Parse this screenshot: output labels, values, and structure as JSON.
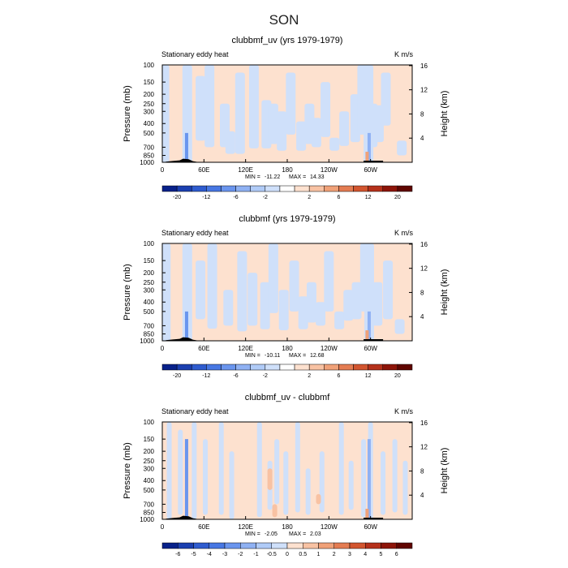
{
  "figure": {
    "title": "SON",
    "ylabel_left": "Pressure (mb)",
    "ylabel_right": "Height (km)"
  },
  "chart_data": [
    {
      "type": "heatmap",
      "title": "clubbmf_uv (yrs 1979-1979)",
      "left_label": "Stationary eddy heat",
      "right_label": "K m/s",
      "x_ticks": [
        "0",
        "60E",
        "120E",
        "180",
        "120W",
        "60W"
      ],
      "x_range": [
        0,
        360
      ],
      "y_ticks": [
        "100",
        "150",
        "200",
        "250",
        "300",
        "400",
        "500",
        "700",
        "850",
        "1000"
      ],
      "y_right_ticks": [
        "16",
        "12",
        "8",
        "4"
      ],
      "ylim": [
        1000,
        100
      ],
      "min": "-11.22",
      "max": "14.33",
      "min_label": "MIN =",
      "max_label": "MAX =",
      "colorbar_labels": [
        "-20",
        "-12",
        "-6",
        "-2",
        "2",
        "6",
        "12",
        "20"
      ],
      "colorbar_levels": [
        -20,
        -16,
        -12,
        -8,
        -6,
        -4,
        -2,
        -1,
        1,
        2,
        4,
        6,
        8,
        12,
        16,
        20
      ],
      "neg_bands": [
        [
          36,
          100,
          1000
        ],
        [
          3,
          100,
          1000
        ],
        [
          55,
          130,
          600
        ],
        [
          68,
          100,
          700
        ],
        [
          90,
          250,
          700
        ],
        [
          98,
          480,
          820
        ],
        [
          112,
          120,
          820
        ],
        [
          132,
          100,
          720
        ],
        [
          150,
          230,
          720
        ],
        [
          160,
          250,
          650
        ],
        [
          172,
          300,
          760
        ],
        [
          185,
          120,
          520
        ],
        [
          200,
          380,
          760
        ],
        [
          212,
          250,
          650
        ],
        [
          222,
          350,
          700
        ],
        [
          235,
          150,
          550
        ],
        [
          248,
          560,
          760
        ],
        [
          262,
          300,
          680
        ],
        [
          278,
          200,
          620
        ],
        [
          288,
          100,
          520
        ],
        [
          297,
          100,
          1000
        ],
        [
          303,
          250,
          700
        ],
        [
          312,
          260,
          620
        ],
        [
          322,
          120,
          420
        ],
        [
          345,
          600,
          850
        ]
      ]
    },
    {
      "type": "heatmap",
      "title": "clubbmf (yrs 1979-1979)",
      "left_label": "Stationary eddy heat",
      "right_label": "K m/s",
      "x_ticks": [
        "0",
        "60E",
        "120E",
        "180",
        "120W",
        "60W"
      ],
      "x_range": [
        0,
        360
      ],
      "y_ticks": [
        "100",
        "150",
        "200",
        "250",
        "300",
        "400",
        "500",
        "700",
        "850",
        "1000"
      ],
      "y_right_ticks": [
        "16",
        "12",
        "8",
        "4"
      ],
      "ylim": [
        1000,
        100
      ],
      "min": "-10.11",
      "max": "12.68",
      "min_label": "MIN =",
      "max_label": "MAX =",
      "colorbar_labels": [
        "-20",
        "-12",
        "-6",
        "-2",
        "2",
        "6",
        "12",
        "20"
      ],
      "colorbar_levels": [
        -20,
        -16,
        -12,
        -8,
        -6,
        -4,
        -2,
        -1,
        1,
        2,
        4,
        6,
        8,
        12,
        16,
        20
      ],
      "neg_bands": [
        [
          36,
          100,
          1000
        ],
        [
          5,
          100,
          1000
        ],
        [
          55,
          150,
          600
        ],
        [
          72,
          100,
          750
        ],
        [
          95,
          300,
          700
        ],
        [
          115,
          120,
          800
        ],
        [
          130,
          200,
          700
        ],
        [
          148,
          250,
          760
        ],
        [
          160,
          100,
          520
        ],
        [
          175,
          300,
          780
        ],
        [
          190,
          150,
          500
        ],
        [
          203,
          350,
          760
        ],
        [
          215,
          250,
          650
        ],
        [
          228,
          400,
          700
        ],
        [
          240,
          120,
          500
        ],
        [
          255,
          500,
          760
        ],
        [
          268,
          300,
          620
        ],
        [
          280,
          250,
          600
        ],
        [
          292,
          100,
          500
        ],
        [
          298,
          100,
          1000
        ],
        [
          310,
          250,
          700
        ],
        [
          325,
          150,
          600
        ],
        [
          342,
          600,
          850
        ]
      ]
    },
    {
      "type": "heatmap",
      "title": "clubbmf_uv - clubbmf",
      "left_label": "Stationary eddy heat",
      "right_label": "K m/s",
      "x_ticks": [
        "0",
        "60E",
        "120E",
        "180",
        "120W",
        "60W"
      ],
      "x_range": [
        0,
        360
      ],
      "y_ticks": [
        "100",
        "150",
        "200",
        "250",
        "300",
        "400",
        "500",
        "700",
        "850",
        "1000"
      ],
      "y_right_ticks": [
        "16",
        "12",
        "8",
        "4"
      ],
      "ylim": [
        1000,
        100
      ],
      "min": "-2.05",
      "max": "2.03",
      "min_label": "MIN =",
      "max_label": "MAX =",
      "colorbar_labels": [
        "-6",
        "-5",
        "-4",
        "-3",
        "-2",
        "-1",
        "-0.5",
        "0",
        "0.5",
        "1",
        "2",
        "3",
        "4",
        "5",
        "6"
      ],
      "colorbar_levels": [
        -6,
        -5,
        -4,
        -3,
        -2,
        -1,
        -0.5,
        0,
        0.5,
        1,
        2,
        3,
        4,
        5,
        6
      ],
      "neg_bands": [
        [
          10,
          100,
          1000
        ],
        [
          26,
          120,
          900
        ],
        [
          46,
          100,
          1000
        ],
        [
          62,
          150,
          900
        ],
        [
          85,
          100,
          900
        ],
        [
          100,
          200,
          1000
        ],
        [
          140,
          100,
          950
        ],
        [
          155,
          250,
          800
        ],
        [
          165,
          150,
          700
        ],
        [
          178,
          200,
          900
        ],
        [
          195,
          100,
          850
        ],
        [
          210,
          300,
          900
        ],
        [
          230,
          200,
          850
        ],
        [
          258,
          100,
          900
        ],
        [
          272,
          250,
          800
        ],
        [
          290,
          150,
          950
        ],
        [
          300,
          100,
          1000
        ],
        [
          318,
          200,
          900
        ],
        [
          335,
          150,
          850
        ],
        [
          350,
          250,
          900
        ]
      ]
    }
  ]
}
